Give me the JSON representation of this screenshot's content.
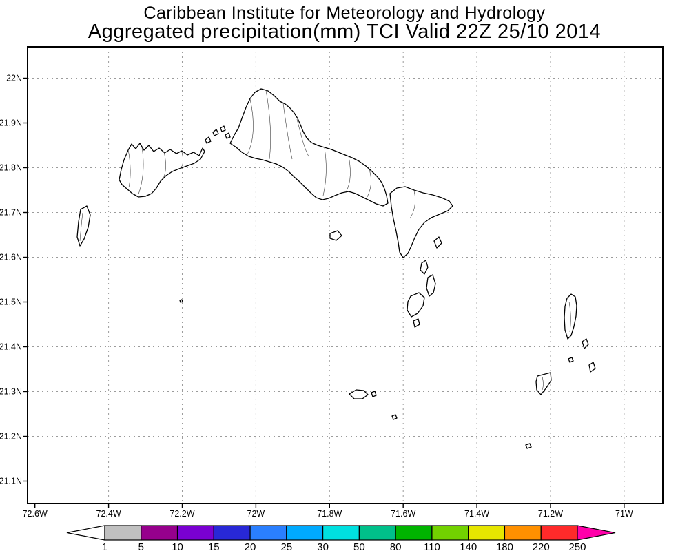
{
  "header": {
    "title_line1": "Caribbean Institute for Meteorology and Hydrology",
    "title_line2": "Aggregated precipitation(mm) TCI Valid 22Z 25/10 2014"
  },
  "chart_data": {
    "type": "map",
    "title": "Caribbean Institute for Meteorology and Hydrology",
    "subtitle": "Aggregated precipitation(mm) TCI Valid 22Z 25/10 2014",
    "variable": "Aggregated precipitation",
    "units": "mm",
    "region_code": "TCI",
    "valid_time": "22Z 25/10 2014",
    "x_axis": {
      "tick_labels": [
        "72.6W",
        "72.4W",
        "72.2W",
        "72W",
        "71.8W",
        "71.6W",
        "71.4W",
        "71.2W",
        "71W"
      ],
      "tick_values_deg_west": [
        72.6,
        72.4,
        72.2,
        72.0,
        71.8,
        71.6,
        71.4,
        71.2,
        71.0
      ],
      "grid": "dashed"
    },
    "y_axis": {
      "tick_labels": [
        "22N",
        "21.9N",
        "21.8N",
        "21.7N",
        "21.6N",
        "21.5N",
        "21.4N",
        "21.3N",
        "21.2N",
        "21.1N"
      ],
      "tick_values_deg_north": [
        22.0,
        21.9,
        21.8,
        21.7,
        21.6,
        21.5,
        21.4,
        21.3,
        21.2,
        21.1
      ],
      "grid": "dashed"
    },
    "colorbar": {
      "tick_labels": [
        "1",
        "5",
        "10",
        "15",
        "20",
        "25",
        "30",
        "50",
        "80",
        "110",
        "140",
        "180",
        "220",
        "250"
      ],
      "levels_mm": [
        1,
        5,
        10,
        15,
        20,
        25,
        30,
        50,
        80,
        110,
        140,
        180,
        220,
        250
      ],
      "colors": [
        "#ffffff",
        "#c0c0c0",
        "#96008c",
        "#7a00d2",
        "#2828d7",
        "#2a7fff",
        "#00aaff",
        "#00e0e0",
        "#00c08a",
        "#00b400",
        "#72d200",
        "#e6e600",
        "#ff9000",
        "#ff2a2a",
        "#ff00aa"
      ],
      "left_arrow_color": "#ffffff",
      "right_arrow_color": "#ff00aa"
    },
    "shaded_precipitation_areas": []
  }
}
